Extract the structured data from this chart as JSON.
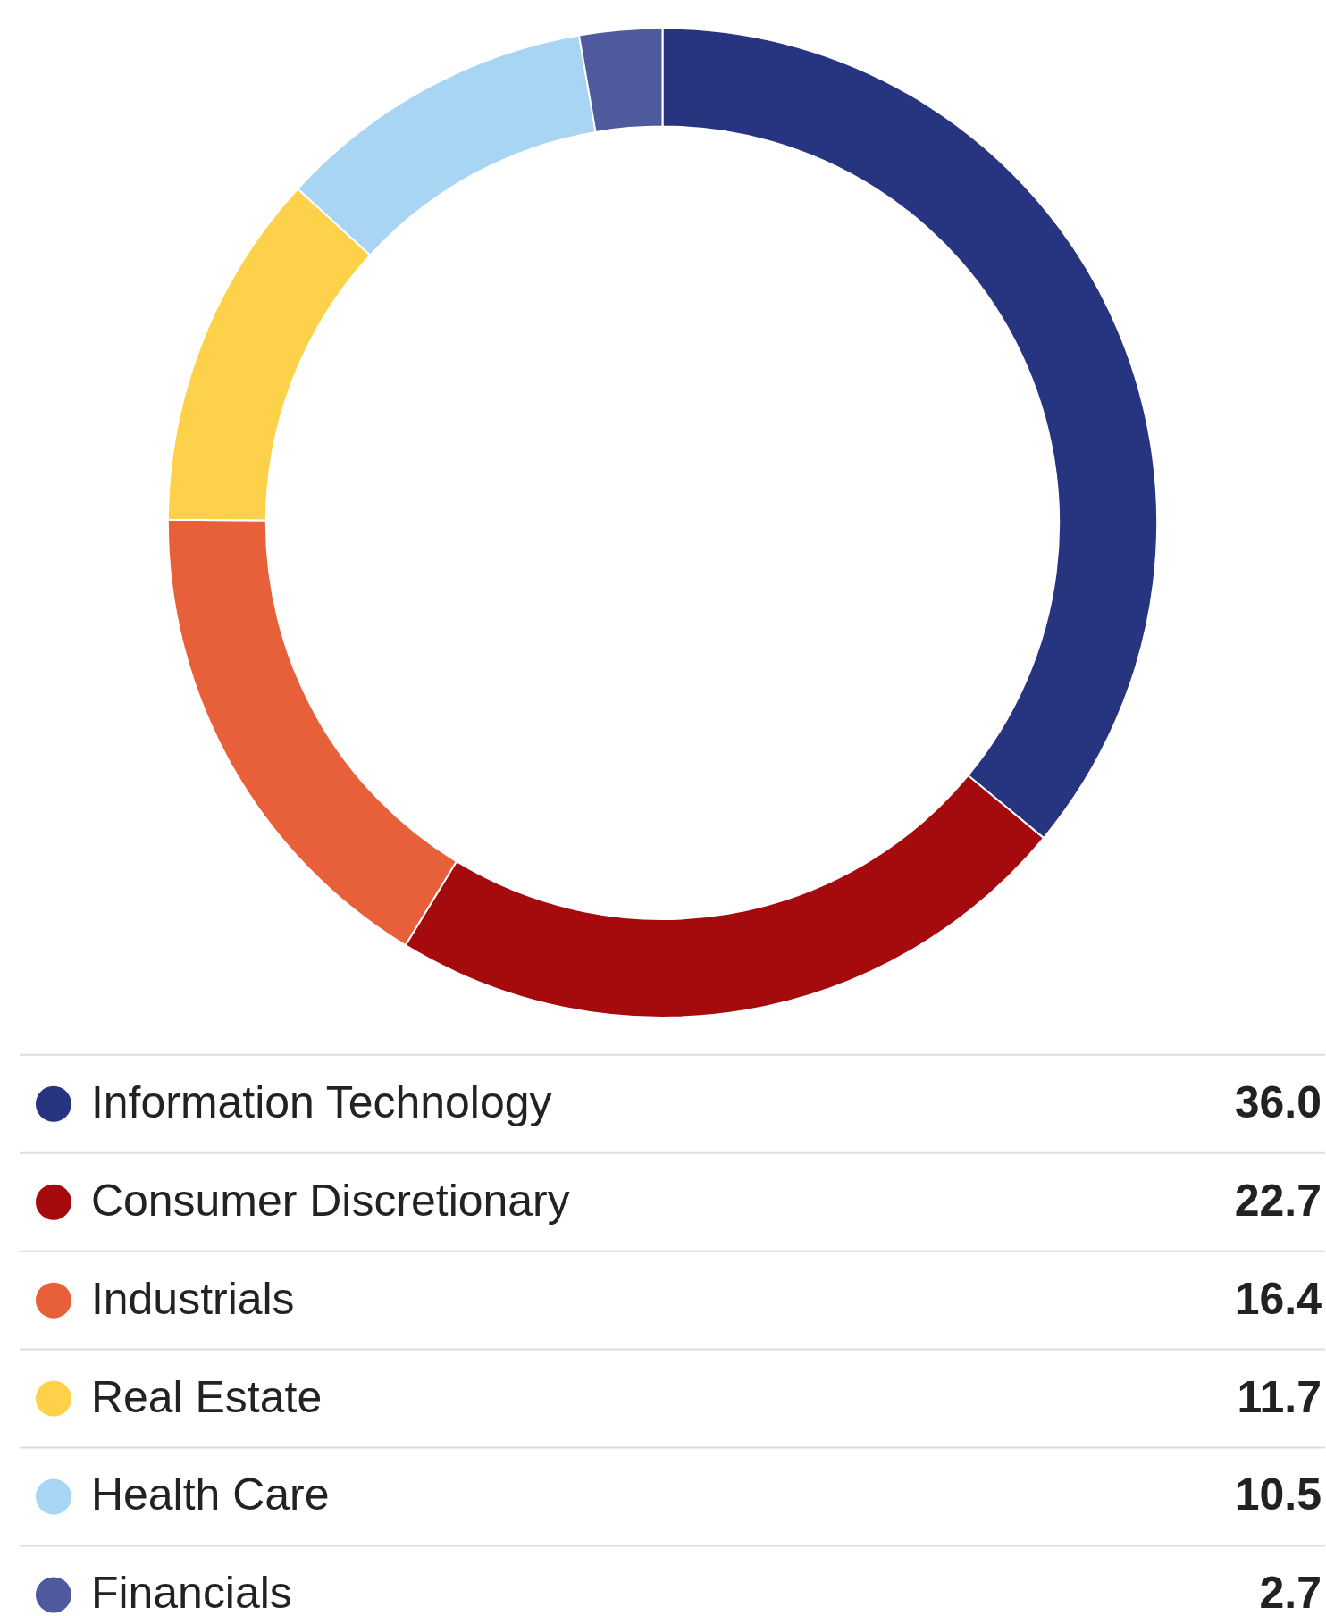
{
  "chart_data": {
    "type": "donut",
    "categories": [
      "Information Technology",
      "Consumer Discretionary",
      "Industrials",
      "Real Estate",
      "Health Care",
      "Financials"
    ],
    "values": [
      36.0,
      22.7,
      16.4,
      11.7,
      10.5,
      2.7
    ],
    "colors": [
      "#27347f",
      "#a50a0c",
      "#e8603a",
      "#fdd149",
      "#a7d5f3",
      "#4f5a9e"
    ],
    "value_labels": [
      "36.0",
      "22.7",
      "16.4",
      "11.7",
      "10.5",
      "2.7"
    ],
    "legend": "bottom"
  }
}
